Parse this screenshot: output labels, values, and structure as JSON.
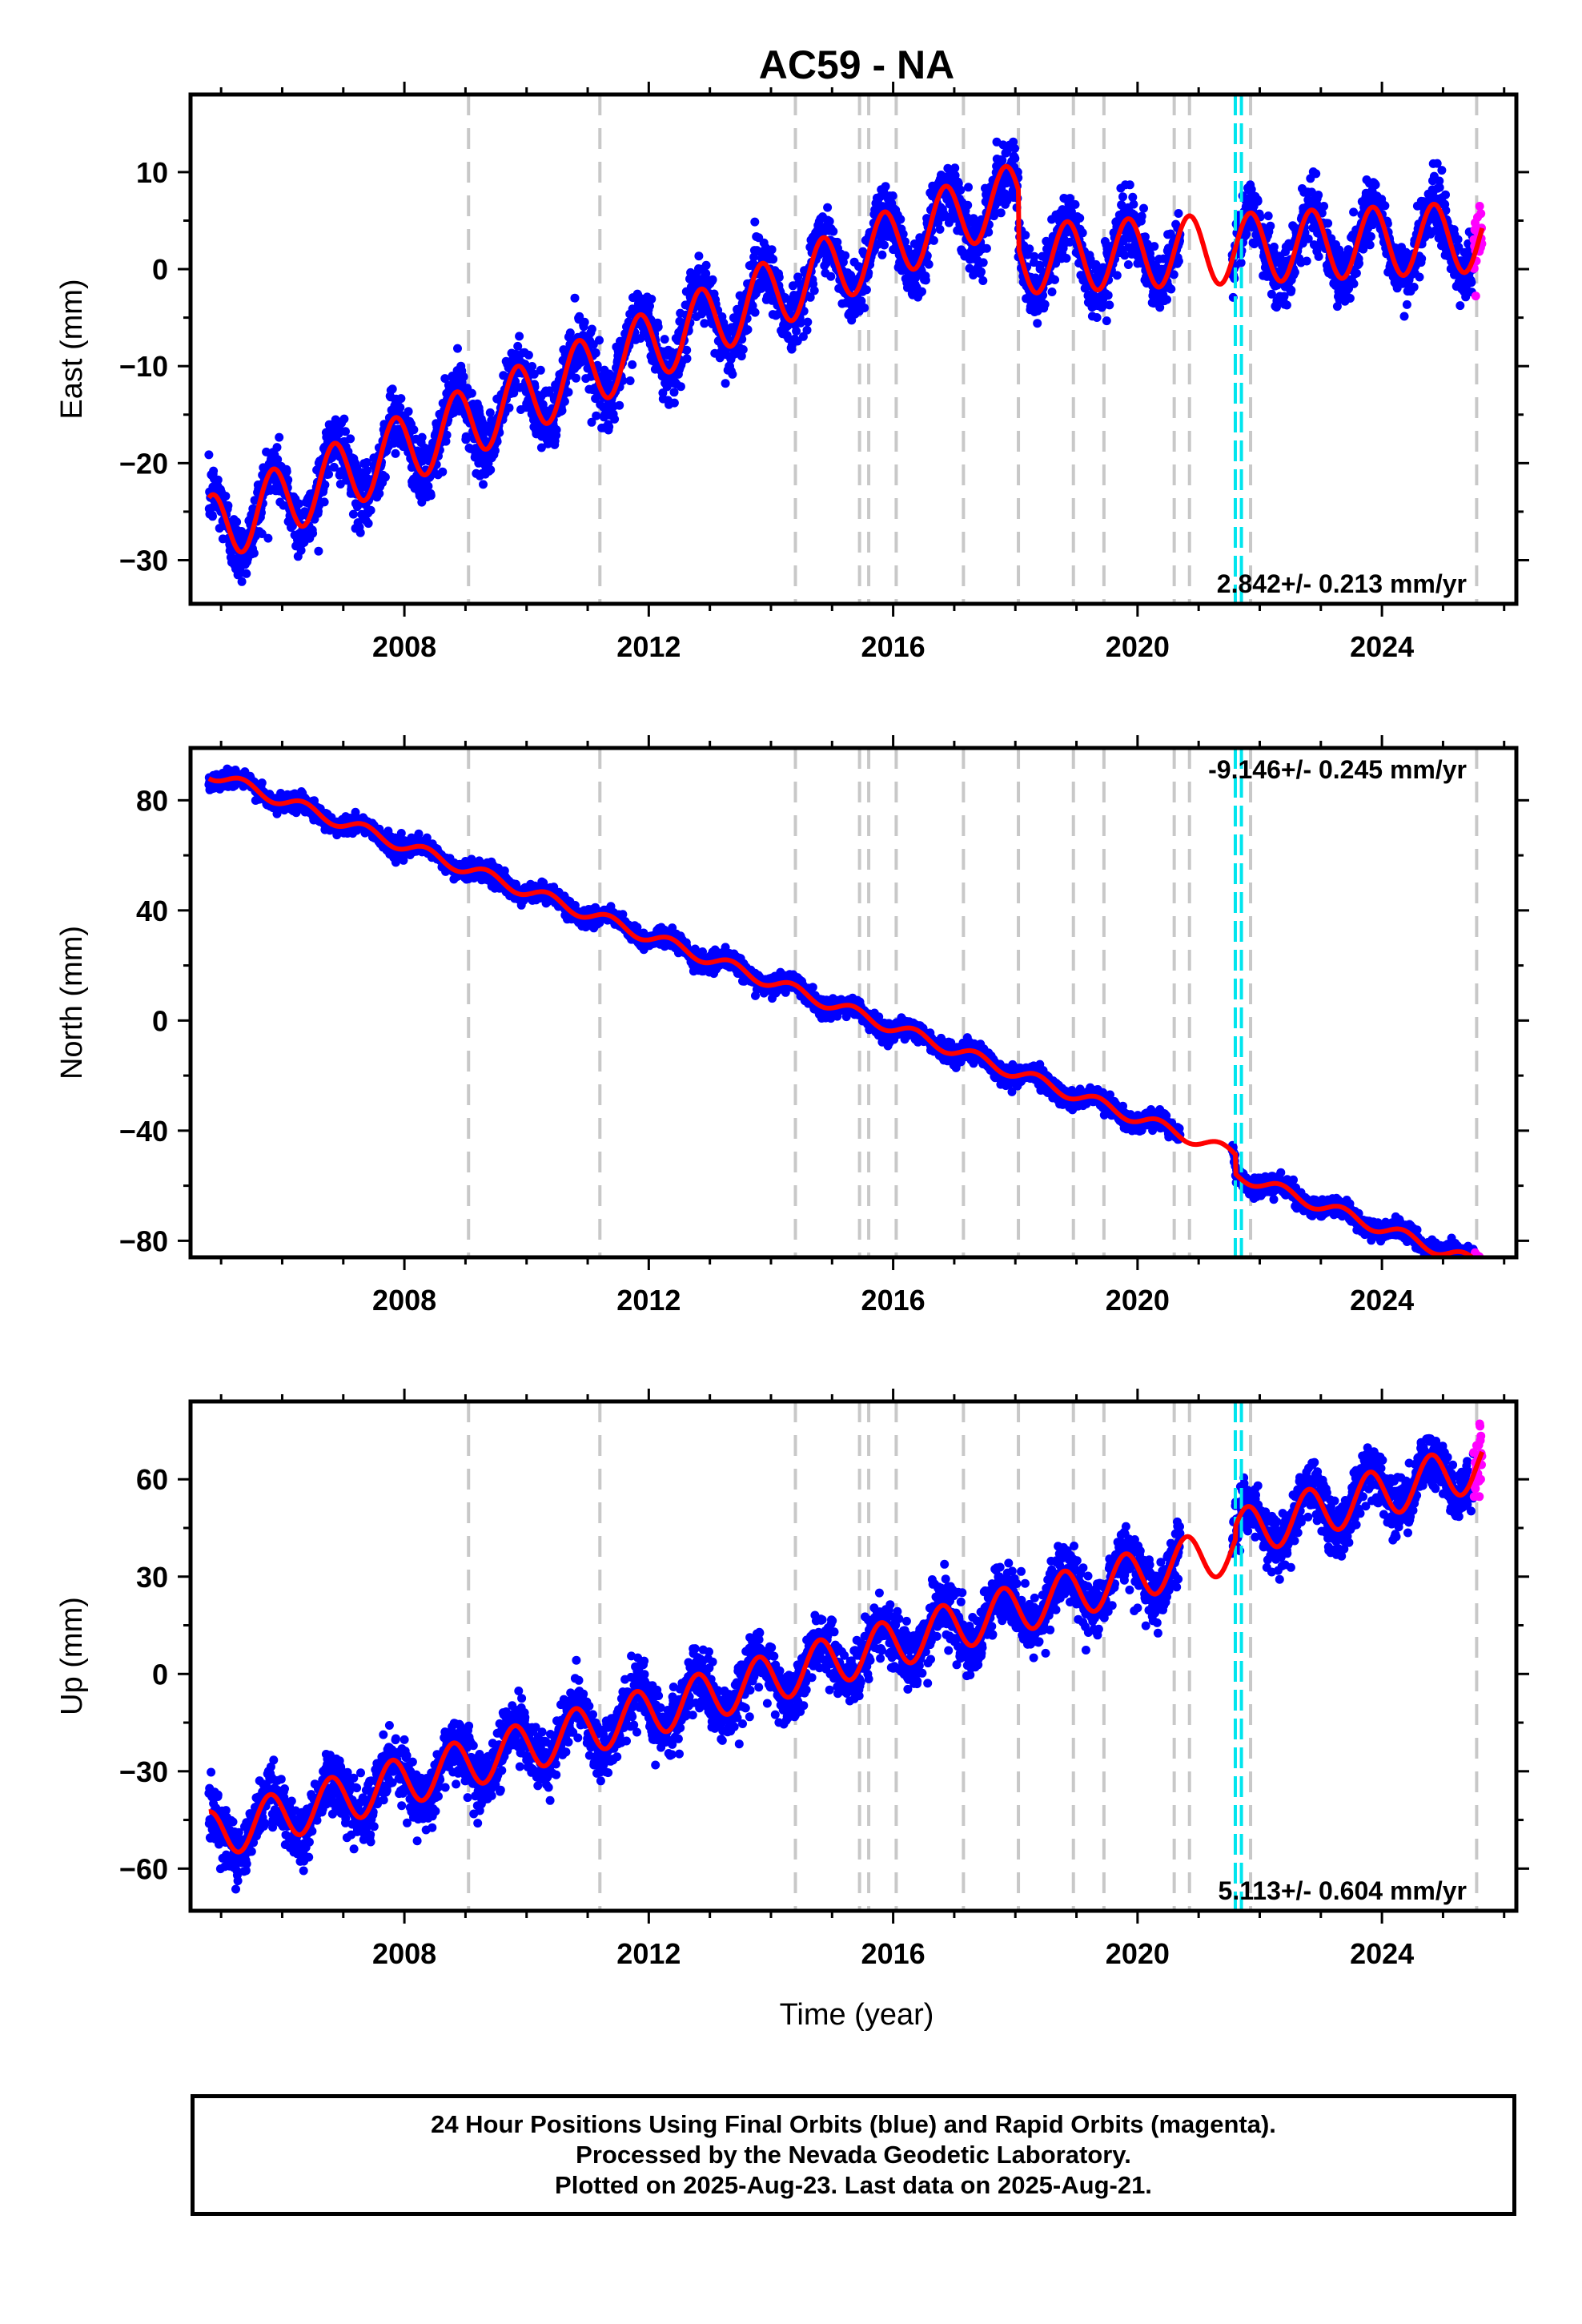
{
  "chart_data": {
    "type": "scatter",
    "title": "AC59 - NA",
    "xlabel": "Time (year)",
    "xlim": [
      2004.5,
      2026.2
    ],
    "x_ticks": [
      2008,
      2012,
      2016,
      2020,
      2024
    ],
    "x_tick_labels": [
      "2008",
      "2012",
      "2016",
      "2020",
      "2024"
    ],
    "gray_dashed_lines": [
      2009.05,
      2011.2,
      2014.4,
      2015.45,
      2015.6,
      2016.05,
      2017.15,
      2018.05,
      2018.95,
      2019.45,
      2020.6,
      2020.85,
      2021.85,
      2025.55
    ],
    "cyan_dashed_lines": [
      2021.6,
      2021.7
    ],
    "series_colors": {
      "final": "#0000ff",
      "rapid": "#ff00ff",
      "model": "#ff0000",
      "gray_line": "#c8c8c8",
      "cyan_line": "#00e5ee"
    },
    "panels": [
      {
        "id": "east",
        "ylabel": "East (mm)",
        "ylim": [
          -34.5,
          18
        ],
        "y_ticks": [
          -30,
          -20,
          -10,
          0,
          10
        ],
        "y_tick_labels": [
          "−30",
          "−20",
          "−10",
          "0",
          "10"
        ],
        "rate": "2.842+/- 0.213 mm/yr",
        "rate_position": "bottom-right",
        "model": {
          "t0": 2004.8,
          "offset": -27.0,
          "slope_segments": [
            [
              2004.8,
              2017.6,
              2.65
            ],
            [
              2017.6,
              2026.2,
              0.3
            ]
          ],
          "annual_amp": 3.6,
          "annual_peak": 0.85,
          "steps": [
            [
              2018.05,
              -6.0
            ]
          ]
        },
        "scatter_sigma": 1.6
      },
      {
        "id": "north",
        "ylabel": "North (mm)",
        "ylim": [
          -86,
          99
        ],
        "y_ticks": [
          -80,
          -40,
          0,
          40,
          80
        ],
        "y_tick_labels": [
          "−80",
          "−40",
          "0",
          "40",
          "80"
        ],
        "rate": "-9.146+/- 0.245 mm/yr",
        "rate_position": "top-right",
        "model": {
          "t0": 2004.8,
          "offset": 90.0,
          "slope_segments": [
            [
              2004.8,
              2026.2,
              -8.25
            ]
          ],
          "annual_amp": 2.2,
          "annual_peak": 0.35,
          "steps": [
            [
              2021.6,
              -7.0
            ]
          ]
        },
        "scatter_sigma": 1.6
      },
      {
        "id": "up",
        "ylabel": "Up (mm)",
        "ylim": [
          -73,
          84
        ],
        "y_ticks": [
          -60,
          -30,
          0,
          30,
          60
        ],
        "y_tick_labels": [
          "−60",
          "−30",
          "0",
          "30",
          "60"
        ],
        "rate": "5.113+/- 0.604 mm/yr",
        "rate_position": "bottom-right",
        "model": {
          "t0": 2004.8,
          "offset": -50.0,
          "slope_segments": [
            [
              2004.8,
              2026.2,
              5.3
            ]
          ],
          "annual_amp": 7.5,
          "annual_peak": 0.8,
          "steps": [
            [
              2021.6,
              4.0
            ]
          ]
        },
        "scatter_sigma": 4.5
      }
    ],
    "data_gap": [
      2020.7,
      2021.55
    ],
    "rapid_orbits_start": 2025.5,
    "data_end": 2025.64
  },
  "footer": {
    "line1": "24 Hour Positions Using Final Orbits (blue) and Rapid Orbits (magenta).",
    "line2": "Processed by the Nevada Geodetic Laboratory.",
    "line3": "Plotted on 2025-Aug-23. Last data on 2025-Aug-21."
  }
}
